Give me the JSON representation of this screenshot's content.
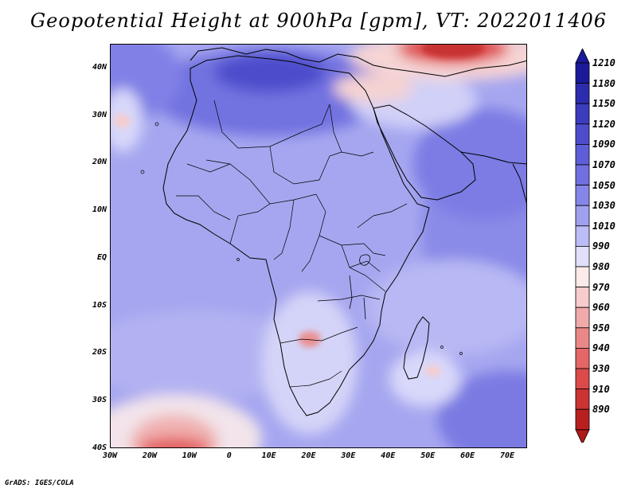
{
  "title": "Geopotential Height at 900hPa [gpm], VT: 2022011406",
  "credit": "GrADS: IGES/COLA",
  "map": {
    "lon_range": [
      -30,
      75
    ],
    "lat_range": [
      -40,
      45
    ],
    "lat_ticks": [
      {
        "value": 40,
        "label": "40N"
      },
      {
        "value": 30,
        "label": "30N"
      },
      {
        "value": 20,
        "label": "20N"
      },
      {
        "value": 10,
        "label": "10N"
      },
      {
        "value": 0,
        "label": "EQ"
      },
      {
        "value": -10,
        "label": "10S"
      },
      {
        "value": -20,
        "label": "20S"
      },
      {
        "value": -30,
        "label": "30S"
      },
      {
        "value": -40,
        "label": "40S"
      }
    ],
    "lon_ticks": [
      {
        "value": -30,
        "label": "30W"
      },
      {
        "value": -20,
        "label": "20W"
      },
      {
        "value": -10,
        "label": "10W"
      },
      {
        "value": 0,
        "label": "0"
      },
      {
        "value": 10,
        "label": "10E"
      },
      {
        "value": 20,
        "label": "20E"
      },
      {
        "value": 30,
        "label": "30E"
      },
      {
        "value": 40,
        "label": "40E"
      },
      {
        "value": 50,
        "label": "50E"
      },
      {
        "value": 60,
        "label": "60E"
      },
      {
        "value": 70,
        "label": "70E"
      }
    ]
  },
  "colorbar": {
    "levels": [
      {
        "label": "1210",
        "color": "#1a1a9a"
      },
      {
        "label": "1180",
        "color": "#2c2cae"
      },
      {
        "label": "1150",
        "color": "#3c3cbe"
      },
      {
        "label": "1120",
        "color": "#4d4dcc"
      },
      {
        "label": "1090",
        "color": "#5e5ed8"
      },
      {
        "label": "1070",
        "color": "#7070e0"
      },
      {
        "label": "1050",
        "color": "#8686ea"
      },
      {
        "label": "1030",
        "color": "#a0a0f0"
      },
      {
        "label": "1010",
        "color": "#bcbcf6"
      },
      {
        "label": "990",
        "color": "#e0e0fa"
      },
      {
        "label": "980",
        "color": "#fbeaea"
      },
      {
        "label": "970",
        "color": "#f6cccc"
      },
      {
        "label": "960",
        "color": "#f0aaaa"
      },
      {
        "label": "950",
        "color": "#ea8888"
      },
      {
        "label": "940",
        "color": "#e46666"
      },
      {
        "label": "930",
        "color": "#dc4a4a"
      },
      {
        "label": "910",
        "color": "#cc3333"
      },
      {
        "label": "890",
        "color": "#b82020"
      }
    ],
    "top_arrow_color": "#1a1a9a",
    "bottom_arrow_color": "#b01818"
  }
}
